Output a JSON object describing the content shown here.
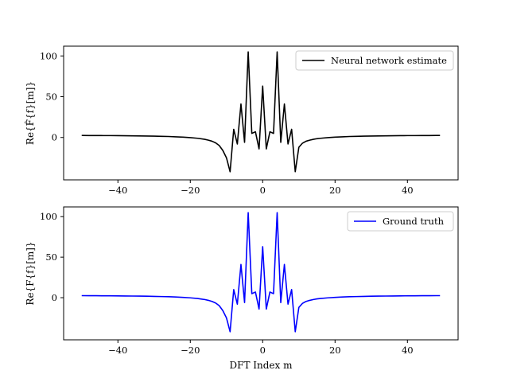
{
  "chart_data": [
    {
      "type": "line",
      "title": "",
      "xlabel": "",
      "ylabel": "Re{F̂{f}[m]}",
      "xlim": [
        -55,
        54
      ],
      "ylim": [
        -52,
        112
      ],
      "xticks": [
        -40,
        -20,
        0,
        20,
        40
      ],
      "yticks": [
        0,
        50,
        100
      ],
      "xtick_labels": [
        "−40",
        "−20",
        "0",
        "20",
        "40"
      ],
      "ytick_labels": [
        "0",
        "50",
        "100"
      ],
      "grid": false,
      "legend": "top-right",
      "series": [
        {
          "name": "Neural network estimate",
          "color": "#000000",
          "x": [
            -50,
            -48,
            -46,
            -44,
            -42,
            -40,
            -38,
            -36,
            -34,
            -32,
            -30,
            -28,
            -26,
            -24,
            -22,
            -20,
            -18,
            -16,
            -15,
            -14,
            -13,
            -12,
            -11,
            -10,
            -9,
            -8,
            -7,
            -6,
            -5,
            -4,
            -3,
            -2,
            -1,
            0,
            1,
            2,
            3,
            4,
            5,
            6,
            7,
            8,
            9,
            10,
            11,
            12,
            13,
            14,
            15,
            16,
            18,
            20,
            22,
            24,
            26,
            28,
            30,
            32,
            34,
            36,
            38,
            40,
            42,
            44,
            46,
            48,
            49
          ],
          "y": [
            2.5,
            2.4,
            2.4,
            2.3,
            2.3,
            2.2,
            2.1,
            2.0,
            1.9,
            1.8,
            1.6,
            1.4,
            1.2,
            0.8,
            0.4,
            -0.2,
            -1.0,
            -2.3,
            -3.3,
            -4.6,
            -6.6,
            -9.9,
            -16,
            -25,
            -42,
            10,
            -8,
            41,
            -6,
            105,
            5,
            7,
            -14,
            63,
            -14,
            7,
            5,
            105,
            -6,
            41,
            -8,
            10,
            -42,
            -12,
            -7,
            -4.6,
            -3.3,
            -2.3,
            -1.5,
            -1.0,
            -0.2,
            0.4,
            0.8,
            1.2,
            1.4,
            1.6,
            1.8,
            1.9,
            2.0,
            2.1,
            2.2,
            2.3,
            2.3,
            2.4,
            2.4,
            2.5,
            2.5
          ]
        }
      ]
    },
    {
      "type": "line",
      "title": "",
      "xlabel": "DFT Index m",
      "ylabel": "Re{F{f}[m]}",
      "xlim": [
        -55,
        54
      ],
      "ylim": [
        -52,
        112
      ],
      "xticks": [
        -40,
        -20,
        0,
        20,
        40
      ],
      "yticks": [
        0,
        50,
        100
      ],
      "xtick_labels": [
        "−40",
        "−20",
        "0",
        "20",
        "40"
      ],
      "ytick_labels": [
        "0",
        "50",
        "100"
      ],
      "grid": false,
      "legend": "top-right",
      "series": [
        {
          "name": "Ground truth",
          "color": "#0000ff",
          "x": [
            -50,
            -48,
            -46,
            -44,
            -42,
            -40,
            -38,
            -36,
            -34,
            -32,
            -30,
            -28,
            -26,
            -24,
            -22,
            -20,
            -18,
            -16,
            -15,
            -14,
            -13,
            -12,
            -11,
            -10,
            -9,
            -8,
            -7,
            -6,
            -5,
            -4,
            -3,
            -2,
            -1,
            0,
            1,
            2,
            3,
            4,
            5,
            6,
            7,
            8,
            9,
            10,
            11,
            12,
            13,
            14,
            15,
            16,
            18,
            20,
            22,
            24,
            26,
            28,
            30,
            32,
            34,
            36,
            38,
            40,
            42,
            44,
            46,
            48,
            49
          ],
          "y": [
            2.5,
            2.4,
            2.4,
            2.3,
            2.3,
            2.2,
            2.1,
            2.0,
            1.9,
            1.8,
            1.6,
            1.4,
            1.2,
            0.8,
            0.4,
            -0.2,
            -1.0,
            -2.3,
            -3.3,
            -4.6,
            -6.6,
            -9.9,
            -16,
            -25,
            -42,
            10,
            -8,
            41,
            -6,
            105,
            5,
            7,
            -14,
            63,
            -14,
            7,
            5,
            105,
            -6,
            41,
            -8,
            10,
            -42,
            -12,
            -7,
            -4.6,
            -3.3,
            -2.3,
            -1.5,
            -1.0,
            -0.2,
            0.4,
            0.8,
            1.2,
            1.4,
            1.6,
            1.8,
            1.9,
            2.0,
            2.1,
            2.2,
            2.3,
            2.3,
            2.4,
            2.4,
            2.5,
            2.5
          ]
        }
      ]
    }
  ]
}
